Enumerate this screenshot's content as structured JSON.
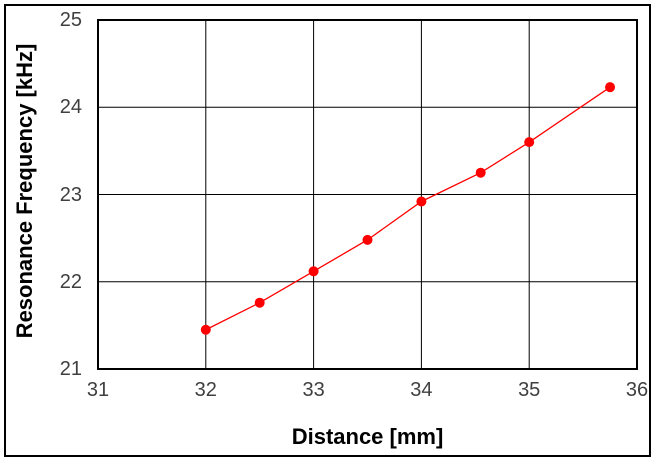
{
  "window": {
    "background": "#ffffff",
    "frame_color": "#000000"
  },
  "colors": {
    "grid": "#000000",
    "plot_border": "#000000",
    "tick_label": "#3f3f3f",
    "axis_title": "#000000"
  },
  "chart_data": {
    "type": "line",
    "title": "",
    "xlabel": "Distance [mm]",
    "ylabel": "Resonance Frequency [kHz]",
    "xlim": [
      31,
      36
    ],
    "ylim": [
      21,
      25
    ],
    "xticks": [
      31,
      32,
      33,
      34,
      35,
      36
    ],
    "yticks": [
      21,
      22,
      23,
      24,
      25
    ],
    "grid": true,
    "legend": false,
    "series": [
      {
        "name": "resonance-frequency",
        "color": "#ff0000",
        "marker": "circle",
        "marker_radius": 5,
        "line_width": 1.3,
        "x": [
          32,
          32.5,
          33,
          33.5,
          34,
          34.55,
          35,
          35.75
        ],
        "y": [
          21.45,
          21.76,
          22.12,
          22.48,
          22.92,
          23.25,
          23.6,
          24.23
        ]
      }
    ]
  }
}
